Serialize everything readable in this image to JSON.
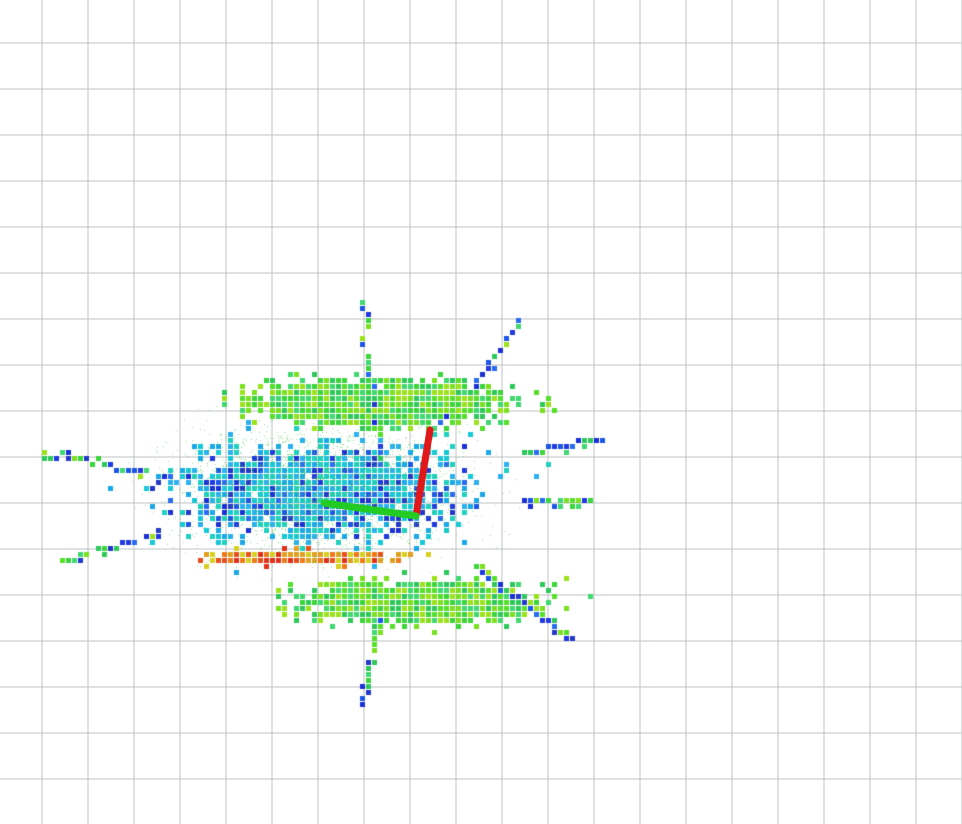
{
  "view": {
    "background_color": "#ffffff",
    "grid": {
      "visible": true,
      "color": "#bfc3c7"
    },
    "point_cloud": {
      "colormap": "rainbow-by-height",
      "low_color": "#1a2fd6",
      "mid_color": "#3ad63a",
      "high_color": "#e8501a"
    },
    "frame_axes": {
      "x_axis_color": "#e0181a",
      "y_axis_color": "#22cc22",
      "shown": true
    }
  }
}
